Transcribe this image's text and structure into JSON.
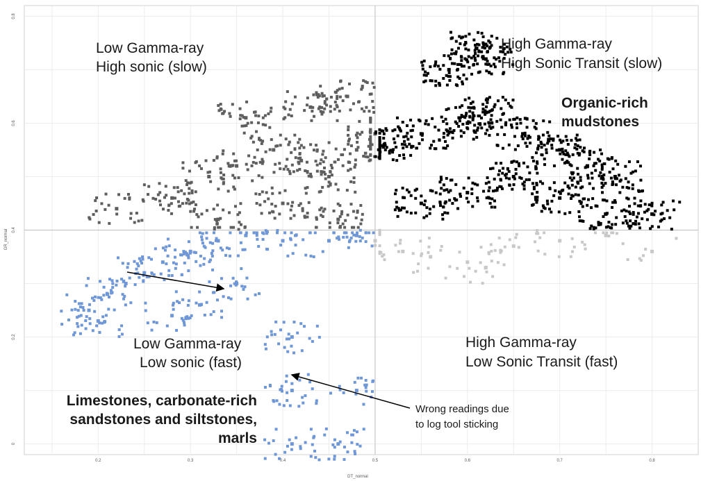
{
  "chart_data": {
    "type": "scatter",
    "xlabel": "DT_normal",
    "ylabel": "GR_normal",
    "xlim": [
      0.12,
      0.85
    ],
    "ylim": [
      -0.02,
      0.82
    ],
    "x_ticks": [
      "0.2",
      "0.3",
      "0.4",
      "0.5",
      "0.6",
      "0.7",
      "0.8"
    ],
    "y_ticks": [
      "0",
      "0.2",
      "0.4",
      "0.6",
      "0.8"
    ],
    "grid": true,
    "thresholds": {
      "x": 0.5,
      "y": 0.4
    },
    "quadrant_labels": {
      "top_left": [
        "Low Gamma-ray",
        "High sonic (slow)"
      ],
      "top_right": [
        "High Gamma-ray",
        "High Sonic Transit (slow)"
      ],
      "bottom_left": [
        "Low Gamma-ray",
        "Low sonic (fast)"
      ],
      "bottom_right": [
        "High Gamma-ray",
        "Low Sonic Transit (fast)"
      ]
    },
    "annotations": {
      "organic": [
        "Organic-rich",
        "mudstones"
      ],
      "limestones": [
        "Limestones, carbonate-rich",
        "sandstones and siltstones,",
        "marls"
      ],
      "wrong_readings": [
        "Wrong readings due",
        "to log tool sticking"
      ]
    },
    "series": [
      {
        "color": "#6f97d6",
        "points": [
          [
            0.19,
            0.25
          ],
          [
            0.2,
            0.23
          ],
          [
            0.21,
            0.28
          ],
          [
            0.23,
            0.3
          ],
          [
            0.25,
            0.32
          ],
          [
            0.27,
            0.34
          ],
          [
            0.3,
            0.36
          ],
          [
            0.33,
            0.38
          ],
          [
            0.36,
            0.39
          ],
          [
            0.4,
            0.38
          ],
          [
            0.45,
            0.38
          ],
          [
            0.48,
            0.39
          ],
          [
            0.35,
            0.3
          ],
          [
            0.31,
            0.26
          ],
          [
            0.28,
            0.24
          ],
          [
            0.41,
            0.2
          ],
          [
            0.41,
            0.1
          ],
          [
            0.41,
            0.0
          ],
          [
            0.46,
            0.0
          ],
          [
            0.48,
            0.1
          ]
        ]
      },
      {
        "color": "#5e5e5e",
        "points": [
          [
            0.22,
            0.44
          ],
          [
            0.28,
            0.46
          ],
          [
            0.32,
            0.5
          ],
          [
            0.35,
            0.52
          ],
          [
            0.39,
            0.55
          ],
          [
            0.42,
            0.53
          ],
          [
            0.45,
            0.5
          ],
          [
            0.48,
            0.55
          ],
          [
            0.5,
            0.58
          ],
          [
            0.36,
            0.61
          ],
          [
            0.43,
            0.63
          ],
          [
            0.47,
            0.65
          ],
          [
            0.33,
            0.42
          ],
          [
            0.4,
            0.45
          ],
          [
            0.46,
            0.42
          ]
        ]
      },
      {
        "color": "#000000",
        "points": [
          [
            0.51,
            0.56
          ],
          [
            0.55,
            0.58
          ],
          [
            0.6,
            0.6
          ],
          [
            0.62,
            0.62
          ],
          [
            0.66,
            0.58
          ],
          [
            0.7,
            0.55
          ],
          [
            0.73,
            0.52
          ],
          [
            0.76,
            0.5
          ],
          [
            0.8,
            0.43
          ],
          [
            0.55,
            0.45
          ],
          [
            0.6,
            0.47
          ],
          [
            0.65,
            0.5
          ],
          [
            0.7,
            0.46
          ],
          [
            0.75,
            0.43
          ],
          [
            0.58,
            0.7
          ],
          [
            0.61,
            0.74
          ],
          [
            0.62,
            0.72
          ]
        ]
      },
      {
        "color": "#c8c8c8",
        "points": [
          [
            0.5,
            0.38
          ],
          [
            0.53,
            0.36
          ],
          [
            0.56,
            0.35
          ],
          [
            0.6,
            0.34
          ],
          [
            0.65,
            0.37
          ],
          [
            0.7,
            0.38
          ],
          [
            0.75,
            0.39
          ],
          [
            0.8,
            0.36
          ],
          [
            0.62,
            0.33
          ]
        ]
      }
    ]
  }
}
